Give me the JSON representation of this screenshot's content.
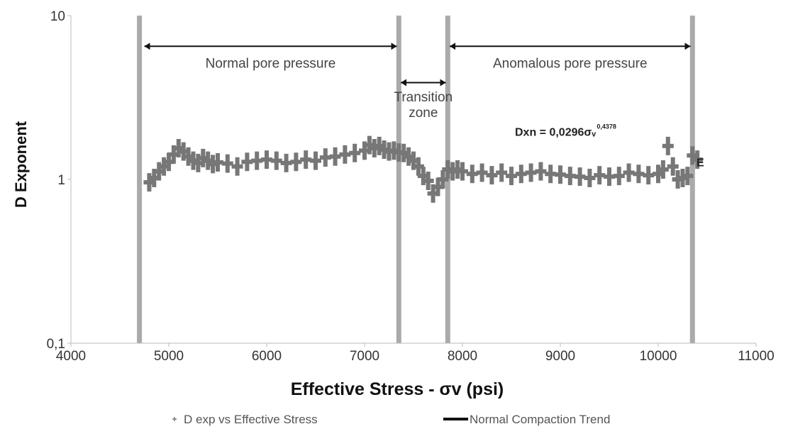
{
  "chart_data": {
    "type": "scatter",
    "xlabel": "Effective Stress -  σv (psi)",
    "ylabel": "D Exponent",
    "x_scale": "linear",
    "y_scale": "log",
    "xlim": [
      4000,
      11000
    ],
    "ylim": [
      0.1,
      10
    ],
    "x_ticks": [
      {
        "value": 4000,
        "label": "4000"
      },
      {
        "value": 5000,
        "label": "5000"
      },
      {
        "value": 6000,
        "label": "6000"
      },
      {
        "value": 7000,
        "label": "7000"
      },
      {
        "value": 8000,
        "label": "8000"
      },
      {
        "value": 9000,
        "label": "9000"
      },
      {
        "value": 10000,
        "label": "10000"
      },
      {
        "value": 11000,
        "label": "11000"
      }
    ],
    "y_ticks": [
      {
        "value": 0.1,
        "label": "0,1"
      },
      {
        "value": 1,
        "label": "1"
      },
      {
        "value": 10,
        "label": "10"
      }
    ],
    "grid": false,
    "legend_position": "bottom",
    "series": [
      {
        "name": "D exp vs Effective Stress",
        "color": "#777777",
        "marker": "plus",
        "points": [
          [
            4800,
            0.96
          ],
          [
            4850,
            1.02
          ],
          [
            4900,
            1.12
          ],
          [
            4950,
            1.2
          ],
          [
            5000,
            1.28
          ],
          [
            5050,
            1.42
          ],
          [
            5100,
            1.55
          ],
          [
            5150,
            1.48
          ],
          [
            5200,
            1.38
          ],
          [
            5250,
            1.3
          ],
          [
            5300,
            1.26
          ],
          [
            5350,
            1.35
          ],
          [
            5400,
            1.3
          ],
          [
            5450,
            1.24
          ],
          [
            5500,
            1.27
          ],
          [
            5600,
            1.25
          ],
          [
            5700,
            1.2
          ],
          [
            5800,
            1.28
          ],
          [
            5900,
            1.3
          ],
          [
            6000,
            1.32
          ],
          [
            6100,
            1.3
          ],
          [
            6200,
            1.26
          ],
          [
            6300,
            1.28
          ],
          [
            6400,
            1.32
          ],
          [
            6500,
            1.3
          ],
          [
            6600,
            1.36
          ],
          [
            6700,
            1.38
          ],
          [
            6800,
            1.42
          ],
          [
            6900,
            1.45
          ],
          [
            7000,
            1.5
          ],
          [
            7050,
            1.62
          ],
          [
            7100,
            1.55
          ],
          [
            7150,
            1.6
          ],
          [
            7200,
            1.52
          ],
          [
            7250,
            1.48
          ],
          [
            7300,
            1.5
          ],
          [
            7350,
            1.46
          ],
          [
            7400,
            1.45
          ],
          [
            7450,
            1.38
          ],
          [
            7500,
            1.3
          ],
          [
            7550,
            1.2
          ],
          [
            7600,
            1.05
          ],
          [
            7650,
            0.98
          ],
          [
            7700,
            0.82
          ],
          [
            7750,
            0.9
          ],
          [
            7800,
            1.0
          ],
          [
            7850,
            1.15
          ],
          [
            7900,
            1.12
          ],
          [
            7950,
            1.15
          ],
          [
            8000,
            1.12
          ],
          [
            8100,
            1.08
          ],
          [
            8200,
            1.1
          ],
          [
            8300,
            1.06
          ],
          [
            8400,
            1.1
          ],
          [
            8500,
            1.05
          ],
          [
            8600,
            1.08
          ],
          [
            8700,
            1.1
          ],
          [
            8800,
            1.12
          ],
          [
            8900,
            1.08
          ],
          [
            9000,
            1.07
          ],
          [
            9100,
            1.05
          ],
          [
            9200,
            1.04
          ],
          [
            9300,
            1.02
          ],
          [
            9400,
            1.06
          ],
          [
            9500,
            1.04
          ],
          [
            9600,
            1.05
          ],
          [
            9700,
            1.1
          ],
          [
            9800,
            1.08
          ],
          [
            9900,
            1.06
          ],
          [
            10000,
            1.08
          ],
          [
            10050,
            1.15
          ],
          [
            10100,
            1.6
          ],
          [
            10150,
            1.2
          ],
          [
            10200,
            1.0
          ],
          [
            10250,
            1.02
          ],
          [
            10300,
            1.05
          ],
          [
            10350,
            1.4
          ],
          [
            10400,
            1.32
          ]
        ]
      },
      {
        "name": "Normal Compaction Trend",
        "color": "#111111",
        "type": "line",
        "points": []
      }
    ],
    "vertical_lines": [
      4700,
      7350,
      7850,
      10350
    ],
    "zones": [
      {
        "label": "Normal pore pressure",
        "x_start": 4750,
        "x_end": 7330,
        "arrow_y": 6.5,
        "label_y": 4.8
      },
      {
        "label_lines": [
          "Transition",
          "zone"
        ],
        "x_start": 7370,
        "x_end": 7830,
        "arrow_y": 3.9,
        "label_y": 3.0
      },
      {
        "label": "Anomalous pore pressure",
        "x_start": 7870,
        "x_end": 10330,
        "arrow_y": 6.5,
        "label_y": 4.8
      }
    ],
    "annotations": [
      {
        "text": "Dxn = 0,0296σᵥ",
        "sup": "0,4378",
        "x": 8950,
        "y": 1.85
      },
      {
        "text": "E",
        "x": 10430,
        "y": 1.2
      }
    ]
  }
}
